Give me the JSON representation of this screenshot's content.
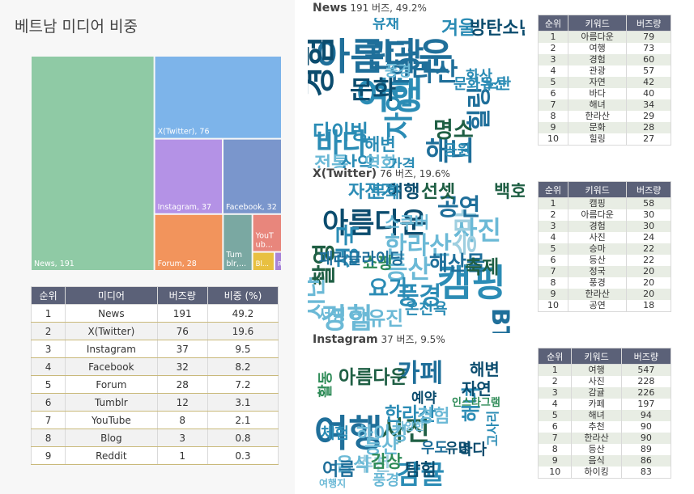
{
  "left": {
    "title": "베트남 미디어 비중",
    "table": {
      "headers": [
        "순위",
        "미디어",
        "버즈량",
        "비중 (%)"
      ],
      "rows": [
        [
          "1",
          "News",
          "191",
          "49.2"
        ],
        [
          "2",
          "X(Twitter)",
          "76",
          "19.6"
        ],
        [
          "3",
          "Instagram",
          "37",
          "9.5"
        ],
        [
          "4",
          "Facebook",
          "32",
          "8.2"
        ],
        [
          "5",
          "Forum",
          "28",
          "7.2"
        ],
        [
          "6",
          "Tumblr",
          "12",
          "3.1"
        ],
        [
          "7",
          "YouTube",
          "8",
          "2.1"
        ],
        [
          "8",
          "Blog",
          "3",
          "0.8"
        ],
        [
          "9",
          "Reddit",
          "1",
          "0.3"
        ]
      ]
    }
  },
  "chart_data": [
    {
      "type": "treemap",
      "title": "베트남 미디어 비중",
      "categories": [
        "News",
        "X(Twitter)",
        "Instagram",
        "Facebook",
        "Forum",
        "Tumblr",
        "YouTube",
        "Blog",
        "Reddit"
      ],
      "values": [
        191,
        76,
        37,
        32,
        28,
        12,
        8,
        3,
        1
      ],
      "labels": [
        "News, 191",
        "X(Twitter), 76",
        "Instagram, 37",
        "Facebook, 32",
        "Forum, 28",
        "Tum blr,...",
        "YouT ub...",
        "Bl...",
        "R"
      ],
      "colors": [
        "#8fcaa5",
        "#7db4ea",
        "#b492e6",
        "#7a96cc",
        "#f2945c",
        "#7aa8a2",
        "#e8867c",
        "#e8c040",
        "#a884d8"
      ]
    },
    {
      "type": "wordcloud",
      "source": "News",
      "words": [
        {
          "text": "아름다운",
          "weight": 79
        },
        {
          "text": "여행",
          "weight": 73
        },
        {
          "text": "경험",
          "weight": 60
        },
        {
          "text": "관광",
          "weight": 57
        },
        {
          "text": "자연",
          "weight": 42
        },
        {
          "text": "바다",
          "weight": 40
        },
        {
          "text": "해녀",
          "weight": 34
        },
        {
          "text": "한라산",
          "weight": 29
        },
        {
          "text": "문화",
          "weight": 28
        },
        {
          "text": "힐링",
          "weight": 27
        },
        {
          "text": "명소",
          "weight": 20
        },
        {
          "text": "다이빙",
          "weight": 15
        },
        {
          "text": "전통",
          "weight": 13
        },
        {
          "text": "산악",
          "weight": 12
        },
        {
          "text": "겨울",
          "weight": 12
        },
        {
          "text": "방탄소년단",
          "weight": 10
        },
        {
          "text": "영화",
          "weight": 10
        },
        {
          "text": "해변",
          "weight": 9
        },
        {
          "text": "유채",
          "weight": 6
        },
        {
          "text": "풍경",
          "weight": 6
        },
        {
          "text": "문화유산",
          "weight": 6
        },
        {
          "text": "노란",
          "weight": 6
        },
        {
          "text": "화산",
          "weight": 6
        },
        {
          "text": "공원",
          "weight": 5
        },
        {
          "text": "가격",
          "weight": 5
        }
      ]
    },
    {
      "type": "wordcloud",
      "source": "X(Twitter)",
      "words": [
        {
          "text": "캠핑",
          "weight": 58
        },
        {
          "text": "아름다운",
          "weight": 30
        },
        {
          "text": "경험",
          "weight": 30
        },
        {
          "text": "사진",
          "weight": 24
        },
        {
          "text": "승마",
          "weight": 22
        },
        {
          "text": "등산",
          "weight": 22
        },
        {
          "text": "정국",
          "weight": 20
        },
        {
          "text": "풍경",
          "weight": 20
        },
        {
          "text": "한라산",
          "weight": 20
        },
        {
          "text": "공연",
          "weight": 18
        },
        {
          "text": "BTS",
          "weight": 18
        },
        {
          "text": "촬영",
          "weight": 17
        },
        {
          "text": "지난",
          "weight": 16
        },
        {
          "text": "요가",
          "weight": 15
        },
        {
          "text": "해산물",
          "weight": 12
        },
        {
          "text": "한유진",
          "weight": 10
        },
        {
          "text": "축제",
          "weight": 9
        },
        {
          "text": "선셋",
          "weight": 9
        },
        {
          "text": "백호",
          "weight": 8
        },
        {
          "text": "자전거",
          "weight": 8
        },
        {
          "text": "여행",
          "weight": 8
        },
        {
          "text": "문화",
          "weight": 6
        },
        {
          "text": "스쿠버",
          "weight": 6
        },
        {
          "text": "쇼핑",
          "weight": 6
        },
        {
          "text": "패러글라이딩",
          "weight": 5
        },
        {
          "text": "온천욕",
          "weight": 5
        },
        {
          "text": "서핑",
          "weight": 5
        }
      ]
    },
    {
      "type": "wordcloud",
      "source": "Instagram",
      "words": [
        {
          "text": "여행",
          "weight": 547
        },
        {
          "text": "사진",
          "weight": 228
        },
        {
          "text": "감귤",
          "weight": 226
        },
        {
          "text": "카페",
          "weight": 197
        },
        {
          "text": "해녀",
          "weight": 94
        },
        {
          "text": "추천",
          "weight": 90
        },
        {
          "text": "한라산",
          "weight": 90
        },
        {
          "text": "등산",
          "weight": 89
        },
        {
          "text": "음식",
          "weight": 86
        },
        {
          "text": "하이킹",
          "weight": 83
        },
        {
          "text": "아름다운",
          "weight": 80
        },
        {
          "text": "경험",
          "weight": 75
        },
        {
          "text": "여름",
          "weight": 70
        },
        {
          "text": "탐험",
          "weight": 68
        },
        {
          "text": "감상",
          "weight": 60
        },
        {
          "text": "해변",
          "weight": 55
        },
        {
          "text": "자연",
          "weight": 55
        },
        {
          "text": "바다",
          "weight": 50
        },
        {
          "text": "체험",
          "weight": 48
        },
        {
          "text": "풍경",
          "weight": 40
        },
        {
          "text": "활동",
          "weight": 38
        },
        {
          "text": "우도",
          "weight": 35
        },
        {
          "text": "유명",
          "weight": 33
        },
        {
          "text": "예약",
          "weight": 30
        },
        {
          "text": "고사리",
          "weight": 25
        },
        {
          "text": "인스타그램",
          "weight": 10
        },
        {
          "text": "다양한",
          "weight": 8
        },
        {
          "text": "여행지",
          "weight": 6
        }
      ]
    }
  ],
  "sections": [
    {
      "name": "News",
      "meta": "191 버즈, 49.2%",
      "table": {
        "headers": [
          "순위",
          "키워드",
          "버즈량"
        ],
        "rows": [
          [
            "1",
            "아름다운",
            "79"
          ],
          [
            "2",
            "여행",
            "73"
          ],
          [
            "3",
            "경험",
            "60"
          ],
          [
            "4",
            "관광",
            "57"
          ],
          [
            "5",
            "자연",
            "42"
          ],
          [
            "6",
            "바다",
            "40"
          ],
          [
            "7",
            "해녀",
            "34"
          ],
          [
            "8",
            "한라산",
            "29"
          ],
          [
            "9",
            "문화",
            "28"
          ],
          [
            "10",
            "힐링",
            "27"
          ]
        ]
      }
    },
    {
      "name": "X(Twitter)",
      "meta": "76 버즈, 19.6%",
      "table": {
        "headers": [
          "순위",
          "키워드",
          "버즈량"
        ],
        "rows": [
          [
            "1",
            "캠핑",
            "58"
          ],
          [
            "2",
            "아름다운",
            "30"
          ],
          [
            "3",
            "경험",
            "30"
          ],
          [
            "4",
            "사진",
            "24"
          ],
          [
            "5",
            "승마",
            "22"
          ],
          [
            "6",
            "등산",
            "22"
          ],
          [
            "7",
            "정국",
            "20"
          ],
          [
            "8",
            "풍경",
            "20"
          ],
          [
            "9",
            "한라산",
            "20"
          ],
          [
            "10",
            "공연",
            "18"
          ]
        ]
      }
    },
    {
      "name": "Instagram",
      "meta": "37 버즈, 9.5%",
      "table": {
        "headers": [
          "순위",
          "키워드",
          "버즈량"
        ],
        "rows": [
          [
            "1",
            "여행",
            "547"
          ],
          [
            "2",
            "사진",
            "228"
          ],
          [
            "3",
            "감귤",
            "226"
          ],
          [
            "4",
            "카페",
            "197"
          ],
          [
            "5",
            "해녀",
            "94"
          ],
          [
            "6",
            "추천",
            "90"
          ],
          [
            "7",
            "한라산",
            "90"
          ],
          [
            "8",
            "등산",
            "89"
          ],
          [
            "9",
            "음식",
            "86"
          ],
          [
            "10",
            "하이킹",
            "83"
          ]
        ]
      }
    }
  ]
}
